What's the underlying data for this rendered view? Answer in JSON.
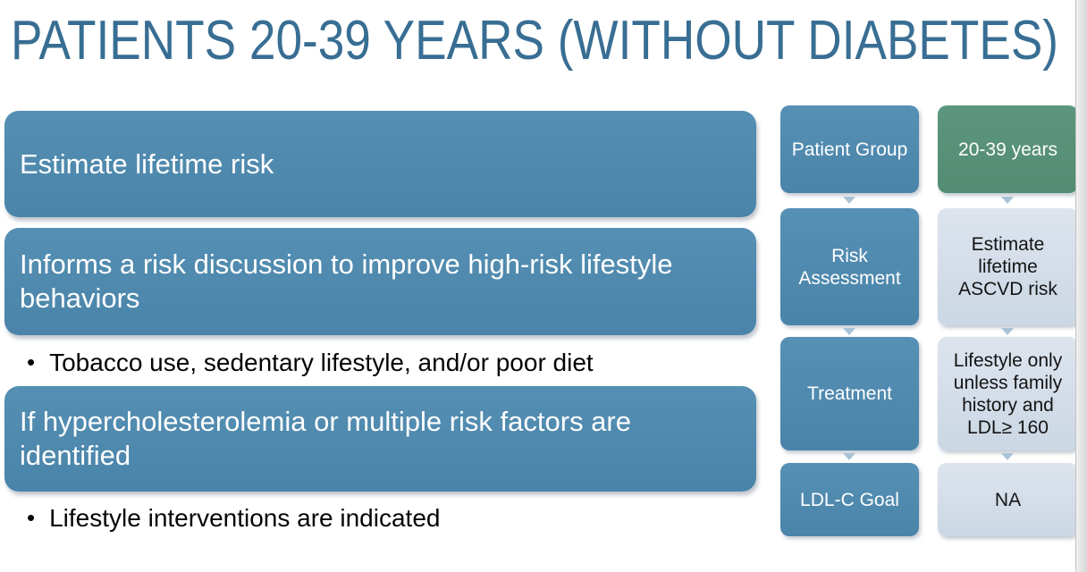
{
  "title": "PATIENTS 20-39 YEARS (WITHOUT DIABETES)",
  "bullet_marker": "•",
  "content_boxes": [
    "Estimate lifetime risk",
    "Informs a risk discussion to improve high-risk lifestyle behaviors",
    "If hypercholesterolemia or multiple risk factors are identified"
  ],
  "bullets": [
    "Tobacco use, sedentary lifestyle, and/or poor diet",
    "Lifestyle interventions are indicated"
  ],
  "summary_table": {
    "rows": [
      {
        "label": "Patient Group",
        "value": "20-39 years"
      },
      {
        "label": "Risk Assessment",
        "value": "Estimate lifetime ASCVD risk"
      },
      {
        "label": "Treatment",
        "value": "Lifestyle only unless family history and LDL≥ 160"
      },
      {
        "label": "LDL-C Goal",
        "value": "NA"
      }
    ]
  },
  "colors": {
    "title_blue": "#386E93",
    "box_blue": "#4E89AE",
    "patient_group_green": "#579078",
    "value_light": "#D5DFEA"
  }
}
